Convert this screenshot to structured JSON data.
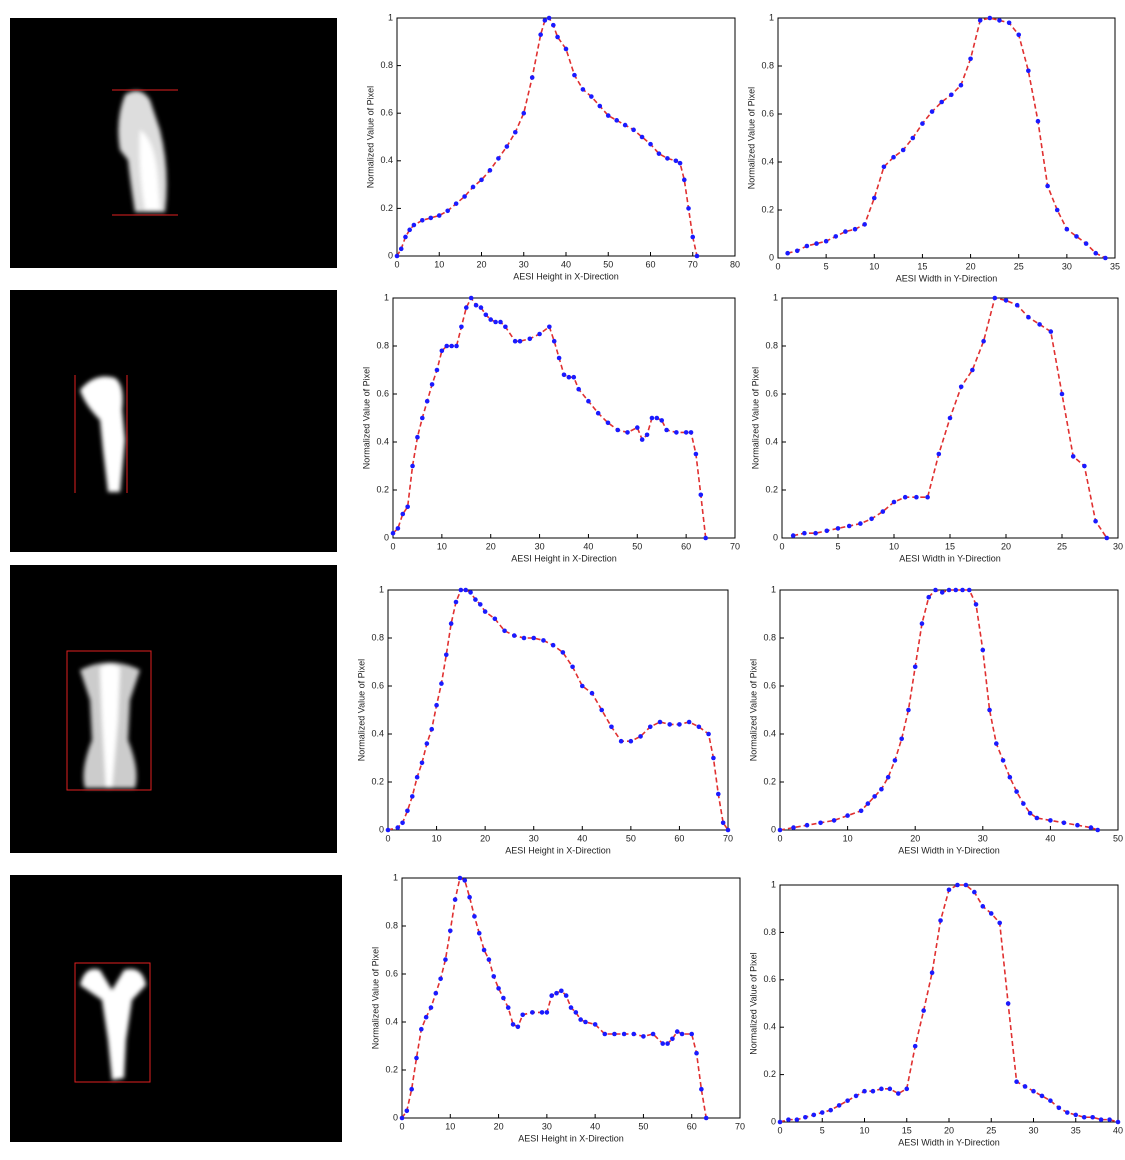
{
  "chart_data": [
    {
      "type": "line",
      "x_label": "AESI Height in X-Direction",
      "y_label": "Normalized Value of Pixel",
      "color": "#e03030",
      "marker_color": "#1a1aff",
      "x": [
        0,
        1,
        2,
        3,
        4,
        6,
        8,
        10,
        12,
        14,
        16,
        18,
        20,
        22,
        24,
        26,
        28,
        30,
        32,
        34,
        35,
        36,
        37,
        38,
        40,
        42,
        44,
        46,
        48,
        50,
        52,
        54,
        56,
        58,
        60,
        62,
        64,
        66,
        67,
        68,
        69,
        70,
        71
      ],
      "values": [
        0,
        0.03,
        0.08,
        0.11,
        0.13,
        0.15,
        0.16,
        0.17,
        0.19,
        0.22,
        0.25,
        0.29,
        0.32,
        0.36,
        0.41,
        0.46,
        0.52,
        0.6,
        0.75,
        0.93,
        0.99,
        1,
        0.97,
        0.92,
        0.87,
        0.76,
        0.7,
        0.67,
        0.63,
        0.59,
        0.57,
        0.55,
        0.53,
        0.5,
        0.47,
        0.43,
        0.41,
        0.4,
        0.39,
        0.32,
        0.2,
        0.08,
        0
      ],
      "xlim": [
        0,
        80
      ],
      "xticks": [
        0,
        10,
        20,
        30,
        40,
        50,
        60,
        70,
        80
      ],
      "ylim": [
        0,
        1
      ],
      "yticks": [
        0,
        0.2,
        0.4,
        0.6,
        0.8,
        1
      ]
    },
    {
      "type": "line",
      "x_label": "AESI Width in Y-Direction",
      "y_label": "Normalized Value of Pixel",
      "color": "#e03030",
      "marker_color": "#1a1aff",
      "x": [
        1,
        2,
        3,
        4,
        5,
        6,
        7,
        8,
        9,
        10,
        11,
        12,
        13,
        14,
        15,
        16,
        17,
        18,
        19,
        20,
        21,
        22,
        23,
        24,
        25,
        26,
        27,
        28,
        29,
        30,
        31,
        32,
        33,
        34
      ],
      "values": [
        0.02,
        0.03,
        0.05,
        0.06,
        0.07,
        0.09,
        0.11,
        0.12,
        0.14,
        0.25,
        0.38,
        0.42,
        0.45,
        0.5,
        0.56,
        0.61,
        0.65,
        0.68,
        0.72,
        0.83,
        0.99,
        1,
        0.99,
        0.98,
        0.93,
        0.78,
        0.57,
        0.3,
        0.2,
        0.12,
        0.09,
        0.06,
        0.02,
        0
      ],
      "xlim": [
        0,
        35
      ],
      "xticks": [
        0,
        5,
        10,
        15,
        20,
        25,
        30,
        35
      ],
      "ylim": [
        0,
        1
      ],
      "yticks": [
        0,
        0.2,
        0.4,
        0.6,
        0.8,
        1
      ]
    },
    {
      "type": "line",
      "x_label": "AESI Height in X-Direction",
      "y_label": "Normalized Value of Pixel",
      "color": "#e03030",
      "marker_color": "#1a1aff",
      "x": [
        0,
        1,
        2,
        3,
        4,
        5,
        6,
        7,
        8,
        9,
        10,
        11,
        12,
        13,
        14,
        15,
        16,
        17,
        18,
        19,
        20,
        21,
        22,
        23,
        25,
        26,
        28,
        30,
        32,
        33,
        34,
        35,
        36,
        37,
        38,
        40,
        42,
        44,
        46,
        48,
        50,
        51,
        52,
        53,
        54,
        55,
        56,
        58,
        60,
        61,
        62,
        63,
        64
      ],
      "values": [
        0.02,
        0.04,
        0.1,
        0.13,
        0.3,
        0.42,
        0.5,
        0.57,
        0.64,
        0.7,
        0.78,
        0.8,
        0.8,
        0.8,
        0.88,
        0.96,
        1,
        0.97,
        0.96,
        0.93,
        0.91,
        0.9,
        0.9,
        0.88,
        0.82,
        0.82,
        0.83,
        0.85,
        0.88,
        0.82,
        0.75,
        0.68,
        0.67,
        0.67,
        0.62,
        0.57,
        0.52,
        0.48,
        0.45,
        0.44,
        0.46,
        0.41,
        0.43,
        0.5,
        0.5,
        0.49,
        0.45,
        0.44,
        0.44,
        0.44,
        0.35,
        0.18,
        0
      ],
      "xlim": [
        0,
        70
      ],
      "xticks": [
        0,
        10,
        20,
        30,
        40,
        50,
        60,
        70
      ],
      "ylim": [
        0,
        1
      ],
      "yticks": [
        0,
        0.2,
        0.4,
        0.6,
        0.8,
        1
      ]
    },
    {
      "type": "line",
      "x_label": "AESI Width in Y-Direction",
      "y_label": "Normalized Value of Pixel",
      "color": "#e03030",
      "marker_color": "#1a1aff",
      "x": [
        1,
        2,
        3,
        4,
        5,
        6,
        7,
        8,
        9,
        10,
        11,
        12,
        13,
        14,
        15,
        16,
        17,
        18,
        19,
        20,
        21,
        22,
        23,
        24,
        25,
        26,
        27,
        28,
        29
      ],
      "values": [
        0.01,
        0.02,
        0.02,
        0.03,
        0.04,
        0.05,
        0.06,
        0.08,
        0.11,
        0.15,
        0.17,
        0.17,
        0.17,
        0.35,
        0.5,
        0.63,
        0.7,
        0.82,
        1,
        0.99,
        0.97,
        0.92,
        0.89,
        0.86,
        0.6,
        0.34,
        0.3,
        0.07,
        0
      ],
      "xlim": [
        0,
        30
      ],
      "xticks": [
        0,
        5,
        10,
        15,
        20,
        25,
        30
      ],
      "ylim": [
        0,
        1
      ],
      "yticks": [
        0,
        0.2,
        0.4,
        0.6,
        0.8,
        1
      ]
    },
    {
      "type": "line",
      "x_label": "AESI Height in X-Direction",
      "y_label": "Normalized Value of Pixel",
      "color": "#e03030",
      "marker_color": "#1a1aff",
      "x": [
        0,
        2,
        3,
        4,
        5,
        6,
        7,
        8,
        9,
        10,
        11,
        12,
        13,
        14,
        15,
        16,
        17,
        18,
        19,
        20,
        22,
        24,
        26,
        28,
        30,
        32,
        34,
        36,
        38,
        40,
        42,
        44,
        46,
        48,
        50,
        52,
        54,
        56,
        58,
        60,
        62,
        64,
        66,
        67,
        68,
        69,
        70
      ],
      "values": [
        0,
        0.01,
        0.03,
        0.08,
        0.14,
        0.22,
        0.28,
        0.36,
        0.42,
        0.52,
        0.61,
        0.73,
        0.86,
        0.95,
        1,
        1,
        0.99,
        0.96,
        0.94,
        0.91,
        0.88,
        0.83,
        0.81,
        0.8,
        0.8,
        0.79,
        0.77,
        0.74,
        0.68,
        0.6,
        0.57,
        0.5,
        0.43,
        0.37,
        0.37,
        0.39,
        0.43,
        0.45,
        0.44,
        0.44,
        0.45,
        0.43,
        0.4,
        0.3,
        0.15,
        0.03,
        0
      ],
      "xlim": [
        0,
        70
      ],
      "xticks": [
        0,
        10,
        20,
        30,
        40,
        50,
        60,
        70
      ],
      "ylim": [
        0,
        1
      ],
      "yticks": [
        0,
        0.2,
        0.4,
        0.6,
        0.8,
        1
      ]
    },
    {
      "type": "line",
      "x_label": "AESI Width in Y-Direction",
      "y_label": "Normalized Value of Pixel",
      "color": "#e03030",
      "marker_color": "#1a1aff",
      "x": [
        0,
        2,
        4,
        6,
        8,
        10,
        12,
        13,
        14,
        15,
        16,
        17,
        18,
        19,
        20,
        21,
        22,
        23,
        24,
        25,
        26,
        27,
        28,
        29,
        30,
        31,
        32,
        33,
        34,
        35,
        36,
        37,
        38,
        40,
        42,
        44,
        46,
        47
      ],
      "values": [
        0,
        0.01,
        0.02,
        0.03,
        0.04,
        0.06,
        0.08,
        0.11,
        0.14,
        0.17,
        0.22,
        0.29,
        0.38,
        0.5,
        0.68,
        0.86,
        0.97,
        1,
        0.99,
        1,
        1,
        1,
        1,
        0.94,
        0.75,
        0.5,
        0.36,
        0.29,
        0.22,
        0.16,
        0.11,
        0.07,
        0.05,
        0.04,
        0.03,
        0.02,
        0.01,
        0
      ],
      "xlim": [
        0,
        50
      ],
      "xticks": [
        0,
        10,
        20,
        30,
        40,
        50
      ],
      "ylim": [
        0,
        1
      ],
      "yticks": [
        0,
        0.2,
        0.4,
        0.6,
        0.8,
        1
      ]
    },
    {
      "type": "line",
      "x_label": "AESI Height in X-Direction",
      "y_label": "Normalized Value of Pixel",
      "color": "#e03030",
      "marker_color": "#1a1aff",
      "x": [
        0,
        1,
        2,
        3,
        4,
        5,
        6,
        7,
        8,
        9,
        10,
        11,
        12,
        13,
        14,
        15,
        16,
        17,
        18,
        19,
        20,
        21,
        22,
        23,
        24,
        25,
        27,
        29,
        30,
        31,
        32,
        33,
        34,
        35,
        36,
        37,
        38,
        40,
        42,
        44,
        46,
        48,
        50,
        52,
        54,
        55,
        56,
        57,
        58,
        60,
        61,
        62,
        63
      ],
      "values": [
        0,
        0.03,
        0.12,
        0.25,
        0.37,
        0.42,
        0.46,
        0.52,
        0.58,
        0.66,
        0.78,
        0.91,
        1,
        0.99,
        0.92,
        0.84,
        0.77,
        0.7,
        0.66,
        0.59,
        0.54,
        0.5,
        0.46,
        0.39,
        0.38,
        0.43,
        0.44,
        0.44,
        0.44,
        0.51,
        0.52,
        0.53,
        0.51,
        0.46,
        0.44,
        0.41,
        0.4,
        0.39,
        0.35,
        0.35,
        0.35,
        0.35,
        0.34,
        0.35,
        0.31,
        0.31,
        0.33,
        0.36,
        0.35,
        0.35,
        0.27,
        0.12,
        0
      ],
      "xlim": [
        0,
        70
      ],
      "xticks": [
        0,
        10,
        20,
        30,
        40,
        50,
        60,
        70
      ],
      "ylim": [
        0,
        1
      ],
      "yticks": [
        0,
        0.2,
        0.4,
        0.6,
        0.8,
        1
      ]
    },
    {
      "type": "line",
      "x_label": "AESI Width in Y-Direction",
      "y_label": "Normalized Value of Pixel",
      "color": "#e03030",
      "marker_color": "#1a1aff",
      "x": [
        0,
        1,
        2,
        3,
        4,
        5,
        6,
        7,
        8,
        9,
        10,
        11,
        12,
        13,
        14,
        15,
        16,
        17,
        18,
        19,
        20,
        21,
        22,
        23,
        24,
        25,
        26,
        27,
        28,
        29,
        30,
        31,
        32,
        33,
        34,
        35,
        36,
        37,
        38,
        39,
        40
      ],
      "values": [
        0,
        0.01,
        0.01,
        0.02,
        0.03,
        0.04,
        0.05,
        0.07,
        0.09,
        0.11,
        0.13,
        0.13,
        0.14,
        0.14,
        0.12,
        0.14,
        0.32,
        0.47,
        0.63,
        0.85,
        0.98,
        1,
        1,
        0.97,
        0.91,
        0.88,
        0.84,
        0.5,
        0.17,
        0.15,
        0.13,
        0.11,
        0.09,
        0.06,
        0.04,
        0.03,
        0.02,
        0.02,
        0.01,
        0.01,
        0
      ],
      "xlim": [
        0,
        40
      ],
      "xticks": [
        0,
        5,
        10,
        15,
        20,
        25,
        30,
        35,
        40
      ],
      "ylim": [
        0,
        1
      ],
      "yticks": [
        0,
        0.2,
        0.4,
        0.6,
        0.8,
        1
      ]
    }
  ]
}
